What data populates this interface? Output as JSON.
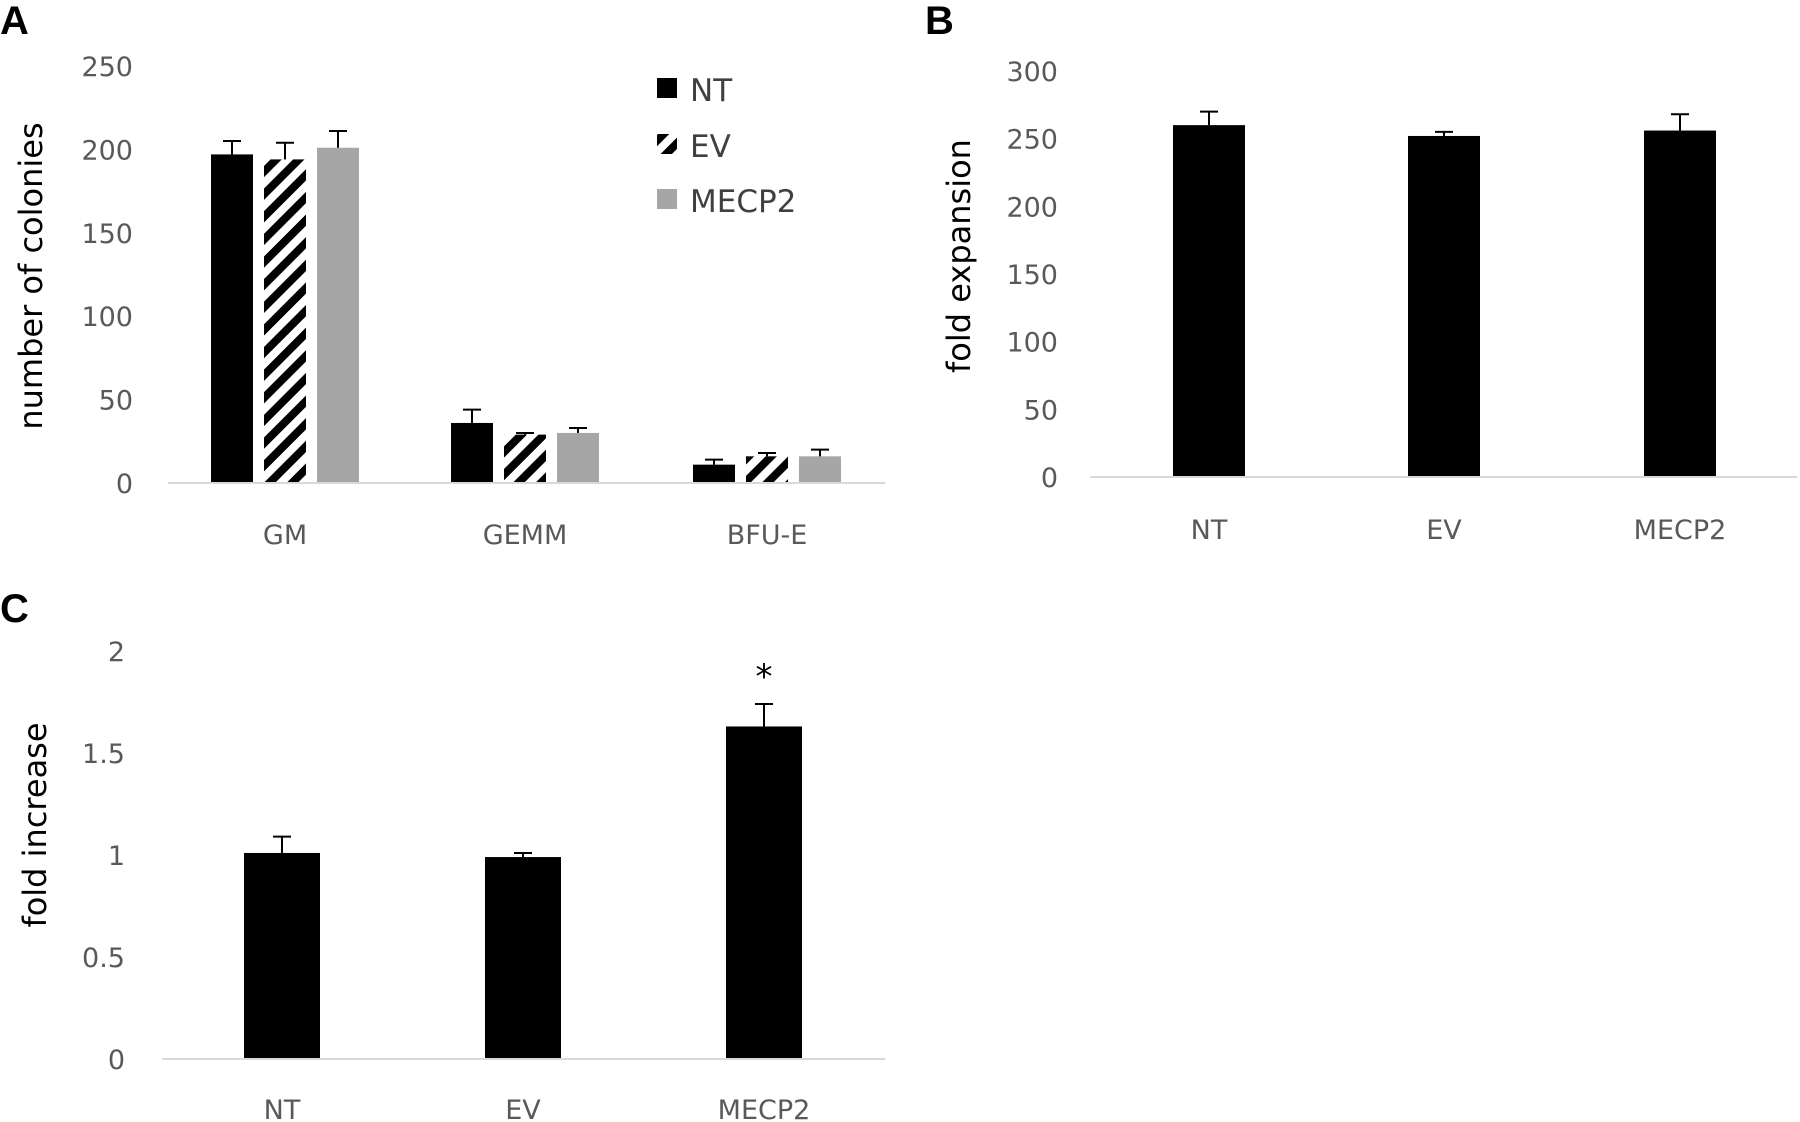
{
  "panels": {
    "a": {
      "letter": "A"
    },
    "b": {
      "letter": "B"
    },
    "c": {
      "letter": "C"
    }
  },
  "colors": {
    "nt": "#000000",
    "ev_stripe": "#000000",
    "mecp2": "#a6a6a6",
    "axis": "#d9d9d9",
    "error_bar": "#000000"
  },
  "chart_data": [
    {
      "id": "A",
      "type": "bar",
      "title": "",
      "xlabel": "",
      "ylabel": "number of colonies",
      "categories": [
        "GM",
        "GEMM",
        "BFU-E"
      ],
      "ylim": [
        0,
        250
      ],
      "yticks": [
        0,
        50,
        100,
        150,
        200,
        250
      ],
      "grid": false,
      "legend_position": "top-right",
      "series": [
        {
          "name": "NT",
          "values": [
            197,
            36,
            11
          ],
          "errors": [
            8,
            8,
            3
          ],
          "fill": "solid-black"
        },
        {
          "name": "EV",
          "values": [
            194,
            29,
            16
          ],
          "errors": [
            10,
            1,
            2
          ],
          "fill": "black-white-stripes"
        },
        {
          "name": "MECP2",
          "values": [
            201,
            30,
            16
          ],
          "errors": [
            10,
            3,
            4
          ],
          "fill": "solid-gray"
        }
      ]
    },
    {
      "id": "B",
      "type": "bar",
      "title": "",
      "xlabel": "",
      "ylabel": "fold expansion",
      "categories": [
        "NT",
        "EV",
        "MECP2"
      ],
      "ylim": [
        0,
        300
      ],
      "yticks": [
        0,
        50,
        100,
        150,
        200,
        250,
        300
      ],
      "grid": false,
      "series": [
        {
          "name": "fold expansion",
          "values": [
            260,
            252,
            256
          ],
          "errors": [
            10,
            3,
            12
          ]
        }
      ]
    },
    {
      "id": "C",
      "type": "bar",
      "title": "",
      "xlabel": "",
      "ylabel": "fold increase",
      "categories": [
        "NT",
        "EV",
        "MECP2"
      ],
      "ylim": [
        0,
        2
      ],
      "yticks": [
        "0",
        "0.5",
        "1",
        "1.5",
        "2"
      ],
      "grid": false,
      "series": [
        {
          "name": "fold increase",
          "values": [
            1.01,
            0.99,
            1.63
          ],
          "errors": [
            0.08,
            0.02,
            0.11
          ]
        }
      ],
      "annotations": [
        {
          "category": "MECP2",
          "text": "*"
        }
      ]
    }
  ]
}
